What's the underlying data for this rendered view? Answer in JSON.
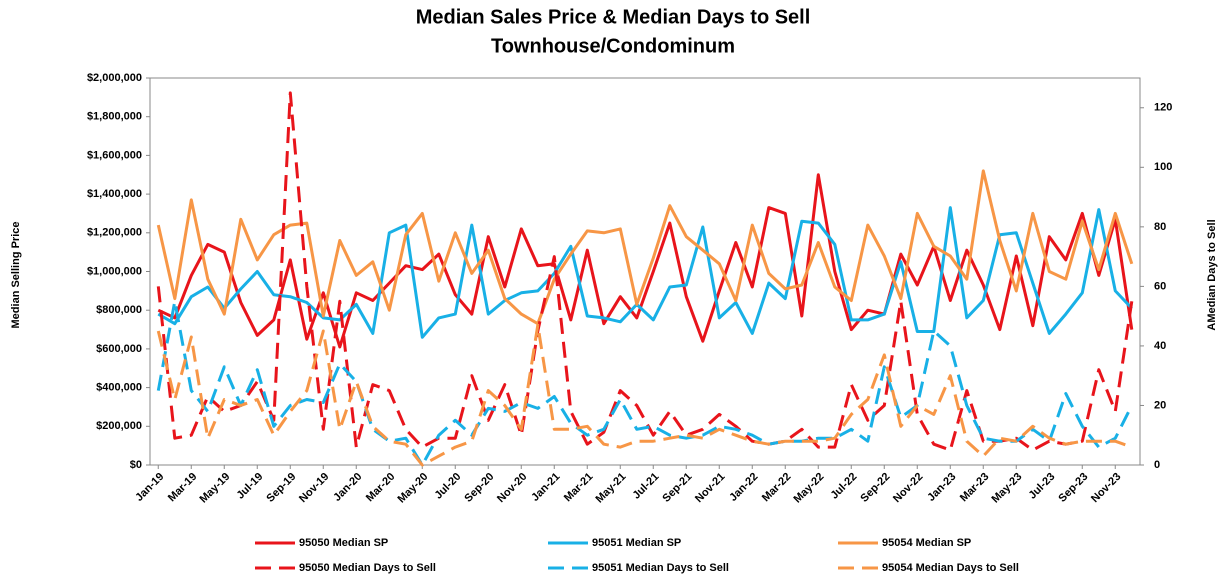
{
  "chart_data": {
    "type": "line",
    "title": "Median Sales Price & Median Days to Sell",
    "subtitle": "Townhouse/Condominum",
    "y_label": "Median Selling Price",
    "y2_label": "AMedian  Days to Sell",
    "categories": [
      "Jan-19",
      null,
      "Mar-19",
      null,
      "May-19",
      null,
      "Jul-19",
      null,
      "Sep-19",
      null,
      "Nov-19",
      null,
      "Jan-20",
      null,
      "Mar-20",
      null,
      "May-20",
      null,
      "Jul-20",
      null,
      "Sep-20",
      null,
      "Nov-20",
      null,
      "Jan-21",
      null,
      "Mar-21",
      null,
      "May-21",
      null,
      "Jul-21",
      null,
      "Sep-21",
      null,
      "Nov-21",
      null,
      "Jan-22",
      null,
      "Mar-22",
      null,
      "May-22",
      null,
      "Jul-22",
      null,
      "Sep-22",
      null,
      "Nov-22",
      null,
      "Jan-23",
      null,
      "Mar-23",
      null,
      "May-23",
      null,
      "Jul-23",
      null,
      "Sep-23",
      null,
      "Nov-23",
      null
    ],
    "ylim": [
      0,
      2000000
    ],
    "yticks": [
      {
        "value": 0,
        "label": "$0"
      },
      {
        "value": 200000,
        "label": "$200,000"
      },
      {
        "value": 400000,
        "label": "$400,000"
      },
      {
        "value": 600000,
        "label": "$600,000"
      },
      {
        "value": 800000,
        "label": "$800,000"
      },
      {
        "value": 1000000,
        "label": "$1,000,000"
      },
      {
        "value": 1200000,
        "label": "$1,200,000"
      },
      {
        "value": 1400000,
        "label": "$1,400,000"
      },
      {
        "value": 1600000,
        "label": "$1,600,000"
      },
      {
        "value": 1800000,
        "label": "$1,800,000"
      },
      {
        "value": 2000000,
        "label": "$2,000,000"
      }
    ],
    "y2lim": [
      0,
      130
    ],
    "y2ticks": [
      0,
      20,
      40,
      60,
      80,
      100,
      120
    ],
    "grid": false,
    "legend": "bottom",
    "series": [
      {
        "name": "95050 Median SP",
        "color": "#e8141b",
        "dashed": false,
        "values": [
          800000,
          760000,
          980000,
          1140000,
          1100000,
          840000,
          670000,
          750000,
          1060000,
          650000,
          890000,
          610000,
          890000,
          850000,
          940000,
          1030000,
          1010000,
          1090000,
          880000,
          780000,
          1180000,
          920000,
          1220000,
          1030000,
          1040000,
          750000,
          1110000,
          730000,
          870000,
          760000,
          1000000,
          1250000,
          870000,
          640000,
          900000,
          1150000,
          920000,
          1330000,
          1300000,
          770000,
          1500000,
          1000000,
          700000,
          800000,
          780000,
          1090000,
          930000,
          1130000,
          850000,
          1110000,
          930000,
          700000,
          1080000,
          720000,
          1180000,
          1060000,
          1300000,
          980000,
          1270000,
          700000
        ]
      },
      {
        "name": "95051 Median SP",
        "color": "#18b0e6",
        "dashed": false,
        "values": [
          780000,
          730000,
          870000,
          920000,
          810000,
          910000,
          1000000,
          880000,
          870000,
          840000,
          760000,
          750000,
          830000,
          680000,
          1200000,
          1240000,
          660000,
          760000,
          780000,
          1240000,
          780000,
          850000,
          890000,
          900000,
          990000,
          1130000,
          770000,
          760000,
          740000,
          830000,
          750000,
          920000,
          930000,
          1230000,
          760000,
          840000,
          680000,
          940000,
          860000,
          1260000,
          1250000,
          1140000,
          750000,
          750000,
          780000,
          1050000,
          690000,
          690000,
          1330000,
          760000,
          850000,
          1190000,
          1200000,
          940000,
          680000,
          780000,
          890000,
          1320000,
          900000,
          810000
        ]
      },
      {
        "name": "95054 Median SP",
        "color": "#f79646",
        "dashed": false,
        "values": [
          1240000,
          860000,
          1370000,
          960000,
          780000,
          1270000,
          1060000,
          1190000,
          1240000,
          1250000,
          770000,
          1160000,
          980000,
          1050000,
          800000,
          1190000,
          1300000,
          950000,
          1200000,
          990000,
          1110000,
          860000,
          780000,
          730000,
          960000,
          1090000,
          1210000,
          1200000,
          1220000,
          830000,
          1070000,
          1340000,
          1180000,
          1110000,
          1040000,
          850000,
          1240000,
          990000,
          910000,
          930000,
          1150000,
          920000,
          850000,
          1240000,
          1080000,
          860000,
          1300000,
          1130000,
          1080000,
          960000,
          1520000,
          1160000,
          900000,
          1300000,
          1000000,
          960000,
          1260000,
          1010000,
          1300000,
          1040000
        ]
      },
      {
        "name": "95050 Median Days to Sell",
        "color": "#e8141b",
        "dashed": true,
        "axis": "y2",
        "values": [
          60,
          9,
          10,
          23,
          18,
          20,
          28,
          15,
          125,
          60,
          12,
          55,
          6,
          27,
          25,
          12,
          6,
          9,
          9,
          30,
          15,
          27,
          10,
          45,
          70,
          18,
          7,
          11,
          25,
          20,
          10,
          18,
          10,
          12,
          17,
          13,
          8,
          7,
          8,
          12,
          6,
          6,
          27,
          15,
          20,
          55,
          17,
          7,
          5,
          25,
          8,
          8,
          9,
          5,
          8,
          7,
          8,
          32,
          18,
          55
        ]
      },
      {
        "name": "95051 Median Days to Sell",
        "color": "#18b0e6",
        "dashed": true,
        "axis": "y2",
        "values": [
          25,
          55,
          25,
          18,
          33,
          20,
          32,
          13,
          20,
          22,
          21,
          34,
          28,
          12,
          8,
          9,
          0,
          10,
          15,
          10,
          19,
          18,
          21,
          19,
          23,
          14,
          10,
          12,
          22,
          12,
          13,
          10,
          9,
          10,
          13,
          12,
          10,
          7,
          8,
          8,
          9,
          9,
          12,
          8,
          33,
          16,
          20,
          45,
          40,
          20,
          9,
          8,
          8,
          12,
          8,
          24,
          13,
          6,
          9,
          20
        ]
      },
      {
        "name": "95054 Median Days to Sell",
        "color": "#f79646",
        "dashed": true,
        "axis": "y2",
        "values": [
          45,
          22,
          43,
          9,
          22,
          20,
          22,
          10,
          18,
          25,
          45,
          12,
          28,
          13,
          8,
          7,
          0,
          3,
          6,
          8,
          25,
          20,
          12,
          47,
          12,
          12,
          13,
          7,
          6,
          8,
          8,
          9,
          10,
          9,
          12,
          10,
          8,
          7,
          8,
          8,
          8,
          9,
          17,
          22,
          37,
          13,
          20,
          17,
          30,
          8,
          3,
          9,
          8,
          13,
          9,
          7,
          8,
          8,
          8,
          6
        ]
      }
    ]
  }
}
